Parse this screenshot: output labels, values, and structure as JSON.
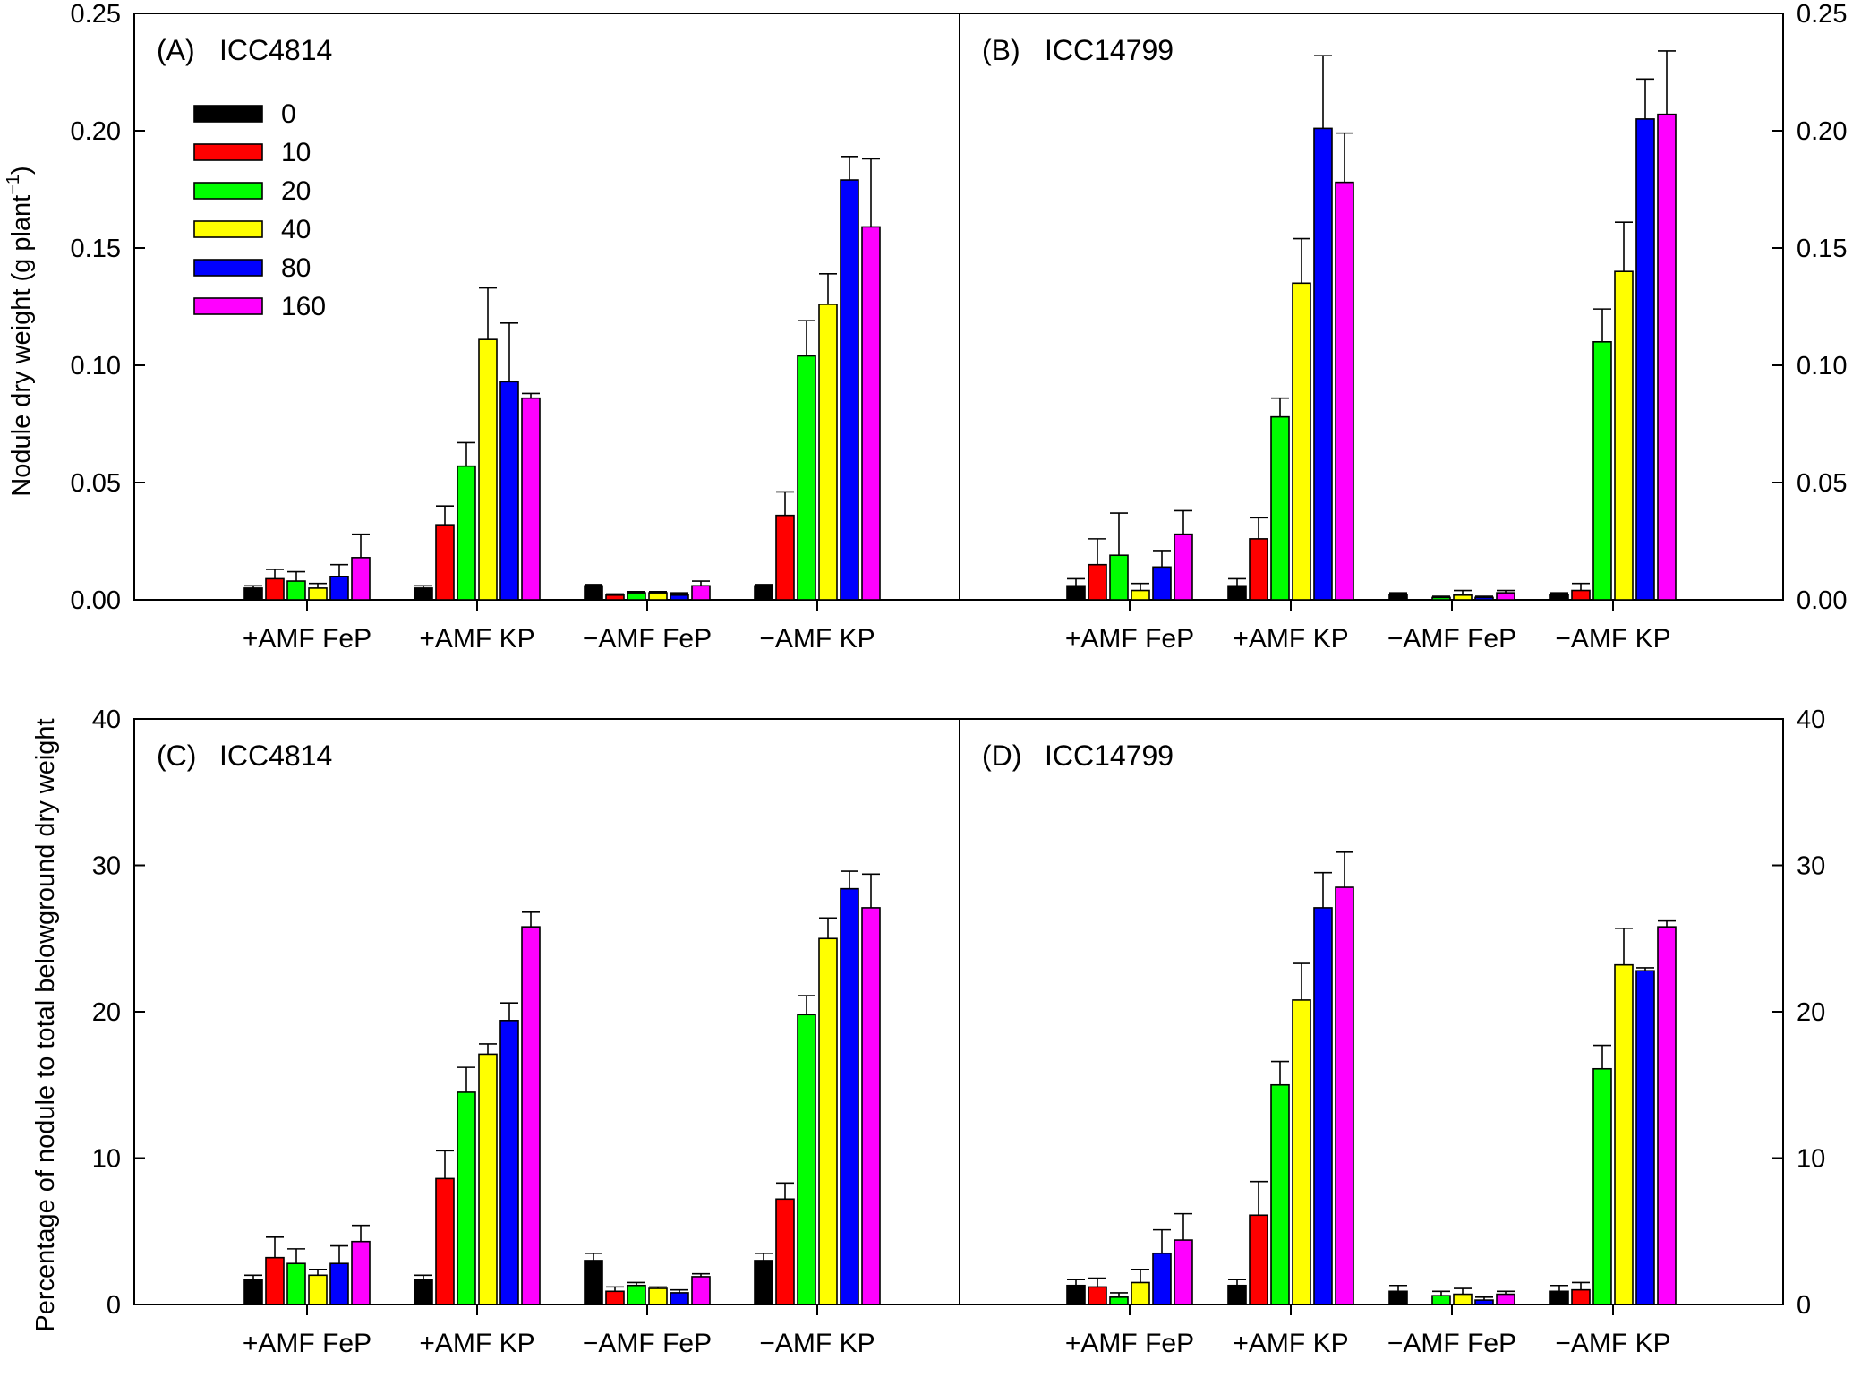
{
  "legend": {
    "entries": [
      "0",
      "10",
      "20",
      "40",
      "80",
      "160"
    ],
    "colors": [
      "#000000",
      "#ff0000",
      "#00ff00",
      "#ffff00",
      "#0000ff",
      "#ff00ff"
    ]
  },
  "ylabels": {
    "top_prefix": "Nodule dry weight (g plant",
    "top_sup": "−1",
    "top_suffix": ")",
    "bottom": "Percentage of nodule to total belowground dry weight"
  },
  "chart_data": [
    {
      "type": "bar",
      "title": "(A)",
      "subtitle": "ICC4814",
      "categories": [
        "+AMF FeP",
        "+AMF KP",
        "−AMF FeP",
        "−AMF KP"
      ],
      "ylim": [
        0,
        0.25
      ],
      "yticks": [
        "0.00",
        "0.05",
        "0.10",
        "0.15",
        "0.20",
        "0.25"
      ],
      "series": [
        {
          "name": "0",
          "values": [
            0.005,
            0.005,
            0.006,
            0.006
          ],
          "errors": [
            0.001,
            0.001,
            0.0005,
            0.0005
          ]
        },
        {
          "name": "10",
          "values": [
            0.009,
            0.032,
            0.002,
            0.036
          ],
          "errors": [
            0.004,
            0.008,
            0.0005,
            0.01
          ]
        },
        {
          "name": "20",
          "values": [
            0.008,
            0.057,
            0.003,
            0.104
          ],
          "errors": [
            0.004,
            0.01,
            0.0005,
            0.015
          ]
        },
        {
          "name": "40",
          "values": [
            0.005,
            0.111,
            0.003,
            0.126
          ],
          "errors": [
            0.002,
            0.022,
            0.0005,
            0.013
          ]
        },
        {
          "name": "80",
          "values": [
            0.01,
            0.093,
            0.002,
            0.179
          ],
          "errors": [
            0.005,
            0.025,
            0.001,
            0.01
          ]
        },
        {
          "name": "160",
          "values": [
            0.018,
            0.086,
            0.006,
            0.159
          ],
          "errors": [
            0.01,
            0.002,
            0.002,
            0.029
          ]
        }
      ]
    },
    {
      "type": "bar",
      "title": "(B)",
      "subtitle": "ICC14799",
      "categories": [
        "+AMF FeP",
        "+AMF KP",
        "−AMF FeP",
        "−AMF KP"
      ],
      "ylim": [
        0,
        0.25
      ],
      "yticks": [
        "0.00",
        "0.05",
        "0.10",
        "0.15",
        "0.20",
        "0.25"
      ],
      "series": [
        {
          "name": "0",
          "values": [
            0.006,
            0.006,
            0.002,
            0.002
          ],
          "errors": [
            0.003,
            0.003,
            0.001,
            0.001
          ]
        },
        {
          "name": "10",
          "values": [
            0.015,
            0.026,
            0.0,
            0.004
          ],
          "errors": [
            0.011,
            0.009,
            0.0,
            0.003
          ]
        },
        {
          "name": "20",
          "values": [
            0.019,
            0.078,
            0.001,
            0.11
          ],
          "errors": [
            0.018,
            0.008,
            0.0005,
            0.014
          ]
        },
        {
          "name": "40",
          "values": [
            0.004,
            0.135,
            0.002,
            0.14
          ],
          "errors": [
            0.003,
            0.019,
            0.002,
            0.021
          ]
        },
        {
          "name": "80",
          "values": [
            0.014,
            0.201,
            0.001,
            0.205
          ],
          "errors": [
            0.007,
            0.031,
            0.0005,
            0.017
          ]
        },
        {
          "name": "160",
          "values": [
            0.028,
            0.178,
            0.003,
            0.207
          ],
          "errors": [
            0.01,
            0.021,
            0.001,
            0.027
          ]
        }
      ]
    },
    {
      "type": "bar",
      "title": "(C)",
      "subtitle": "ICC4814",
      "categories": [
        "+AMF FeP",
        "+AMF KP",
        "−AMF FeP",
        "−AMF KP"
      ],
      "ylim": [
        0,
        40
      ],
      "yticks": [
        "0",
        "10",
        "20",
        "30",
        "40"
      ],
      "series": [
        {
          "name": "0",
          "values": [
            1.7,
            1.7,
            3.0,
            3.0
          ],
          "errors": [
            0.3,
            0.3,
            0.5,
            0.5
          ]
        },
        {
          "name": "10",
          "values": [
            3.2,
            8.6,
            0.9,
            7.2
          ],
          "errors": [
            1.4,
            1.9,
            0.3,
            1.1
          ]
        },
        {
          "name": "20",
          "values": [
            2.8,
            14.5,
            1.3,
            19.8
          ],
          "errors": [
            1.0,
            1.7,
            0.2,
            1.3
          ]
        },
        {
          "name": "40",
          "values": [
            2.0,
            17.1,
            1.1,
            25.0
          ],
          "errors": [
            0.4,
            0.7,
            0.1,
            1.4
          ]
        },
        {
          "name": "80",
          "values": [
            2.8,
            19.4,
            0.8,
            28.4
          ],
          "errors": [
            1.2,
            1.2,
            0.2,
            1.2
          ]
        },
        {
          "name": "160",
          "values": [
            4.3,
            25.8,
            1.9,
            27.1
          ],
          "errors": [
            1.1,
            1.0,
            0.2,
            2.3
          ]
        }
      ]
    },
    {
      "type": "bar",
      "title": "(D)",
      "subtitle": "ICC14799",
      "categories": [
        "+AMF FeP",
        "+AMF KP",
        "−AMF FeP",
        "−AMF KP"
      ],
      "ylim": [
        0,
        40
      ],
      "yticks": [
        "0",
        "10",
        "20",
        "30",
        "40"
      ],
      "series": [
        {
          "name": "0",
          "values": [
            1.3,
            1.3,
            0.9,
            0.9
          ],
          "errors": [
            0.4,
            0.4,
            0.4,
            0.4
          ]
        },
        {
          "name": "10",
          "values": [
            1.2,
            6.1,
            0.0,
            1.0
          ],
          "errors": [
            0.6,
            2.3,
            0.0,
            0.5
          ]
        },
        {
          "name": "20",
          "values": [
            0.5,
            15.0,
            0.6,
            16.1
          ],
          "errors": [
            0.3,
            1.6,
            0.3,
            1.6
          ]
        },
        {
          "name": "40",
          "values": [
            1.5,
            20.8,
            0.7,
            23.2
          ],
          "errors": [
            0.9,
            2.5,
            0.4,
            2.5
          ]
        },
        {
          "name": "80",
          "values": [
            3.5,
            27.1,
            0.3,
            22.8
          ],
          "errors": [
            1.6,
            2.4,
            0.2,
            0.2
          ]
        },
        {
          "name": "160",
          "values": [
            4.4,
            28.5,
            0.7,
            25.8
          ],
          "errors": [
            1.8,
            2.4,
            0.2,
            0.4
          ]
        }
      ]
    }
  ]
}
